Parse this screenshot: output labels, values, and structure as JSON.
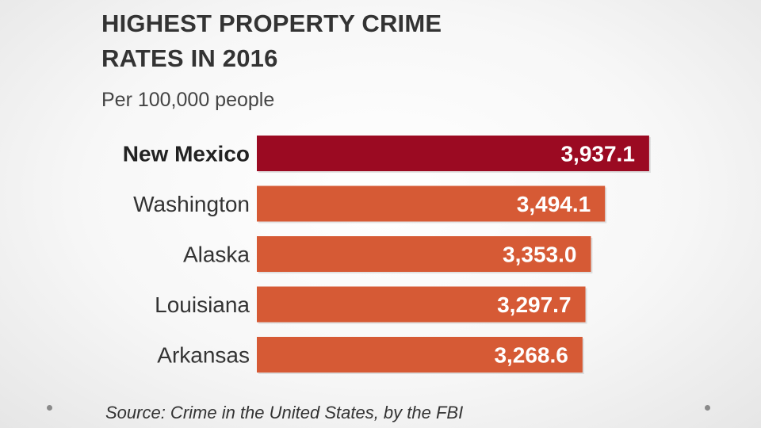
{
  "slide": {
    "title": "HIGHEST PROPERTY CRIME\nRATES IN 2016",
    "subtitle": "Per 100,000 people",
    "source": "Source: Crime in the United States, by the FBI"
  },
  "chart_data": {
    "type": "bar",
    "orientation": "horizontal",
    "title": "HIGHEST PROPERTY CRIME RATES IN 2016",
    "subtitle": "Per 100,000 people",
    "categories": [
      "New Mexico",
      "Washington",
      "Alaska",
      "Louisiana",
      "Arkansas"
    ],
    "values": [
      3937.1,
      3494.1,
      3353.0,
      3297.7,
      3268.6
    ],
    "value_labels": [
      "3,937.1",
      "3,494.1",
      "3,353.0",
      "3,297.7",
      "3,268.6"
    ],
    "highlight_index": 0,
    "colors": {
      "highlight": "#9b0a22",
      "default": "#d65a35",
      "label_highlight": "#222222",
      "label_default": "#333333",
      "value_text": "#ffffff"
    },
    "grid": false,
    "legend": "none"
  }
}
